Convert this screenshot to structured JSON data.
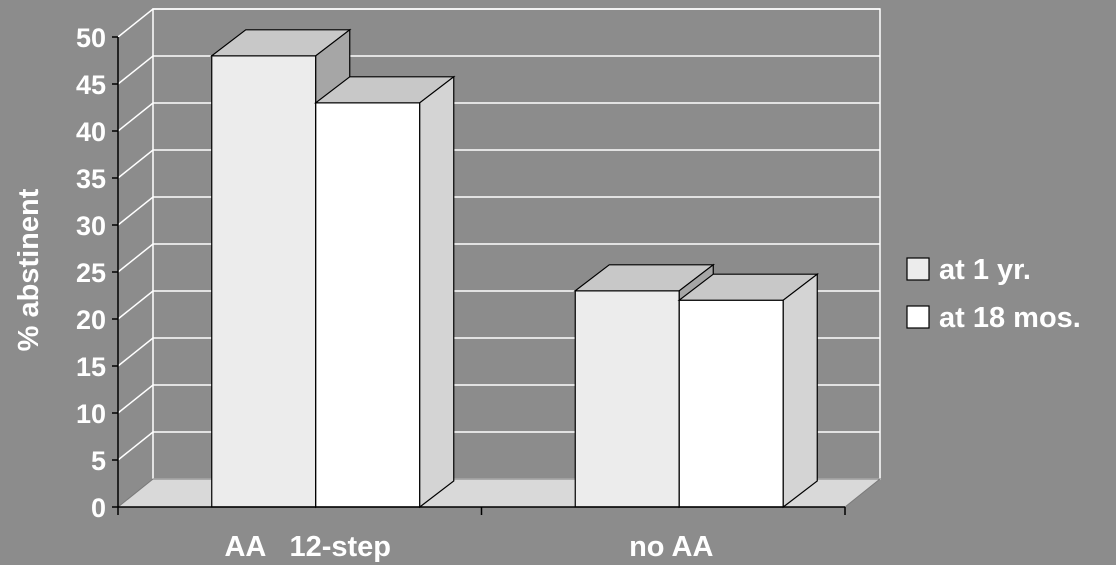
{
  "chart_data": {
    "type": "bar",
    "categories": [
      "AA   12-step",
      "no AA"
    ],
    "series": [
      {
        "name": "at 1 yr.",
        "values": [
          48,
          23
        ],
        "color": "#ececec"
      },
      {
        "name": "at 18 mos.",
        "values": [
          43,
          22
        ],
        "color": "#ffffff"
      }
    ],
    "title": "",
    "xlabel": "",
    "ylabel": "% abstinent",
    "ylim": [
      0,
      50
    ],
    "yticks": [
      "0",
      "5",
      "10",
      "15",
      "20",
      "25",
      "30",
      "35",
      "40",
      "45",
      "50"
    ],
    "grid": true,
    "legend_position": "right",
    "three_d": true
  },
  "colors": {
    "background": "#8c8c8c",
    "wall": "#8c8c8c",
    "floor": "#d9d9d9",
    "gridline": "#ffffff",
    "bar_top": "#c8c8c8",
    "bar_side_1yr": "#a6a6a6",
    "bar_side_18mos": "#d4d4d4",
    "outline": "#000000"
  }
}
